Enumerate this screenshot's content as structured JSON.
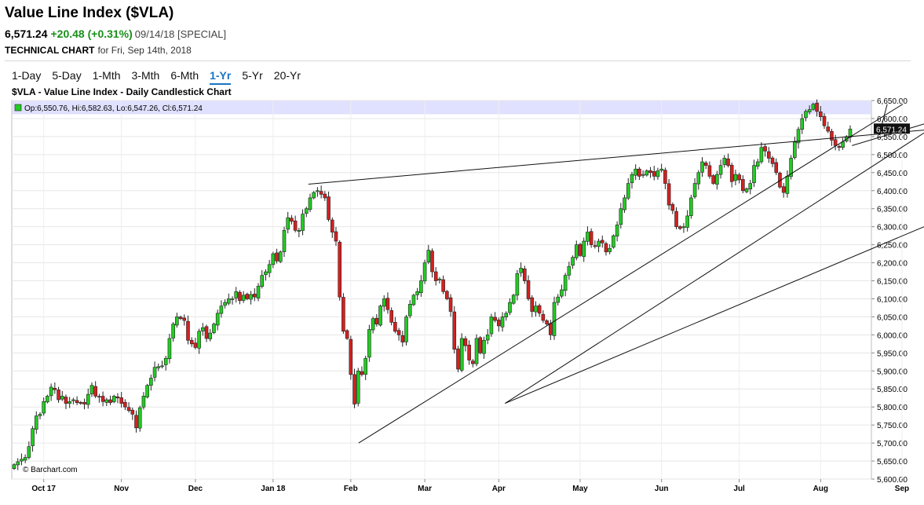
{
  "header": {
    "title": "Value Line Index ($VLA)",
    "last": "6,571.24",
    "change": "+20.48 (+0.31%)",
    "date": "09/14/18 [SPECIAL]",
    "subtitle_bold": "TECHNICAL CHART",
    "subtitle_rest": "for Fri, Sep 14th, 2018"
  },
  "tabs": [
    {
      "label": "1-Day",
      "active": false
    },
    {
      "label": "5-Day",
      "active": false
    },
    {
      "label": "1-Mth",
      "active": false
    },
    {
      "label": "3-Mth",
      "active": false
    },
    {
      "label": "6-Mth",
      "active": false
    },
    {
      "label": "1-Yr",
      "active": true
    },
    {
      "label": "5-Yr",
      "active": false
    },
    {
      "label": "20-Yr",
      "active": false
    }
  ],
  "chart_data": {
    "type": "candlestick",
    "title": "$VLA - Value Line Index - Daily Candlestick Chart",
    "legend": "Op:6,550.76, Hi:6,582.63, Lo:6,547.26, Cl:6,571.24",
    "last_price_label": "6,571.24",
    "watermark": "© Barchart.com",
    "ylim": [
      5600,
      6650
    ],
    "yticks": [
      "5,600.00",
      "5,650.00",
      "5,700.00",
      "5,750.00",
      "5,800.00",
      "5,850.00",
      "5,900.00",
      "5,950.00",
      "6,000.00",
      "6,050.00",
      "6,100.00",
      "6,150.00",
      "6,200.00",
      "6,250.00",
      "6,300.00",
      "6,350.00",
      "6,400.00",
      "6,450.00",
      "6,500.00",
      "6,550.00",
      "6,600.00",
      "6,650.00"
    ],
    "xticks": [
      "Oct 17",
      "Nov",
      "Dec",
      "Jan 18",
      "Feb",
      "Mar",
      "Apr",
      "May",
      "Jun",
      "Jul",
      "Aug",
      "Sep"
    ],
    "grid": true,
    "colors": {
      "up": "#22cc22",
      "down": "#d42020",
      "band": "#e0e0ff"
    },
    "band": [
      6612,
      6650
    ],
    "series_closes": [
      5640,
      5648,
      5655,
      5660,
      5690,
      5740,
      5775,
      5780,
      5815,
      5830,
      5855,
      5848,
      5820,
      5830,
      5810,
      5815,
      5820,
      5812,
      5810,
      5808,
      5835,
      5860,
      5830,
      5828,
      5815,
      5820,
      5812,
      5830,
      5825,
      5810,
      5800,
      5790,
      5780,
      5742,
      5798,
      5830,
      5860,
      5880,
      5910,
      5912,
      5914,
      5935,
      5990,
      6030,
      6050,
      6045,
      6040,
      5985,
      5975,
      5965,
      6010,
      6020,
      5990,
      6005,
      6030,
      6060,
      6080,
      6090,
      6100,
      6100,
      6120,
      6095,
      6110,
      6100,
      6112,
      6105,
      6135,
      6165,
      6175,
      6195,
      6225,
      6205,
      6230,
      6290,
      6325,
      6315,
      6290,
      6290,
      6335,
      6350,
      6380,
      6395,
      6400,
      6390,
      6380,
      6320,
      6285,
      6260,
      6105,
      6010,
      5990,
      5890,
      5808,
      5900,
      5890,
      5935,
      6015,
      6045,
      6030,
      6080,
      6100,
      6070,
      6035,
      6010,
      6000,
      5980,
      6050,
      6085,
      6110,
      6120,
      6150,
      6200,
      6235,
      6175,
      6150,
      6155,
      6120,
      6100,
      6065,
      5960,
      5905,
      5990,
      5970,
      5930,
      5920,
      5990,
      5950,
      5985,
      6000,
      6050,
      6040,
      6025,
      6050,
      6060,
      6090,
      6110,
      6170,
      6185,
      6150,
      6100,
      6065,
      6080,
      6060,
      6040,
      6030,
      6000,
      6090,
      6105,
      6125,
      6165,
      6190,
      6215,
      6250,
      6220,
      6260,
      6285,
      6250,
      6245,
      6260,
      6255,
      6230,
      6240,
      6275,
      6305,
      6350,
      6380,
      6420,
      6445,
      6460,
      6440,
      6445,
      6455,
      6450,
      6440,
      6455,
      6460,
      6420,
      6360,
      6345,
      6300,
      6295,
      6300,
      6330,
      6380,
      6420,
      6450,
      6480,
      6470,
      6440,
      6420,
      6445,
      6470,
      6490,
      6470,
      6425,
      6445,
      6430,
      6400,
      6405,
      6420,
      6470,
      6480,
      6520,
      6510,
      6490,
      6475,
      6450,
      6410,
      6395,
      6440,
      6490,
      6535,
      6570,
      6600,
      6620,
      6625,
      6640,
      6620,
      6605,
      6580,
      6565,
      6540,
      6525,
      6520,
      6535,
      6550,
      6571
    ],
    "trendlines_usd": [
      {
        "from": [
          "Feb",
          5700
        ],
        "to": [
          "Sep 14",
          6575
        ]
      },
      {
        "from": [
          "Apr",
          5810
        ],
        "to": [
          "Sep 14",
          6300
        ]
      },
      {
        "from": [
          "Jan 18",
          6420
        ],
        "to": [
          "Sep 14",
          6565
        ]
      },
      {
        "from": [
          "Aug",
          6545
        ],
        "to": [
          "Sep 14",
          6590
        ]
      },
      {
        "from": [
          "Aug 28",
          6640
        ],
        "to": [
          "Sep 14",
          6560
        ]
      }
    ]
  }
}
